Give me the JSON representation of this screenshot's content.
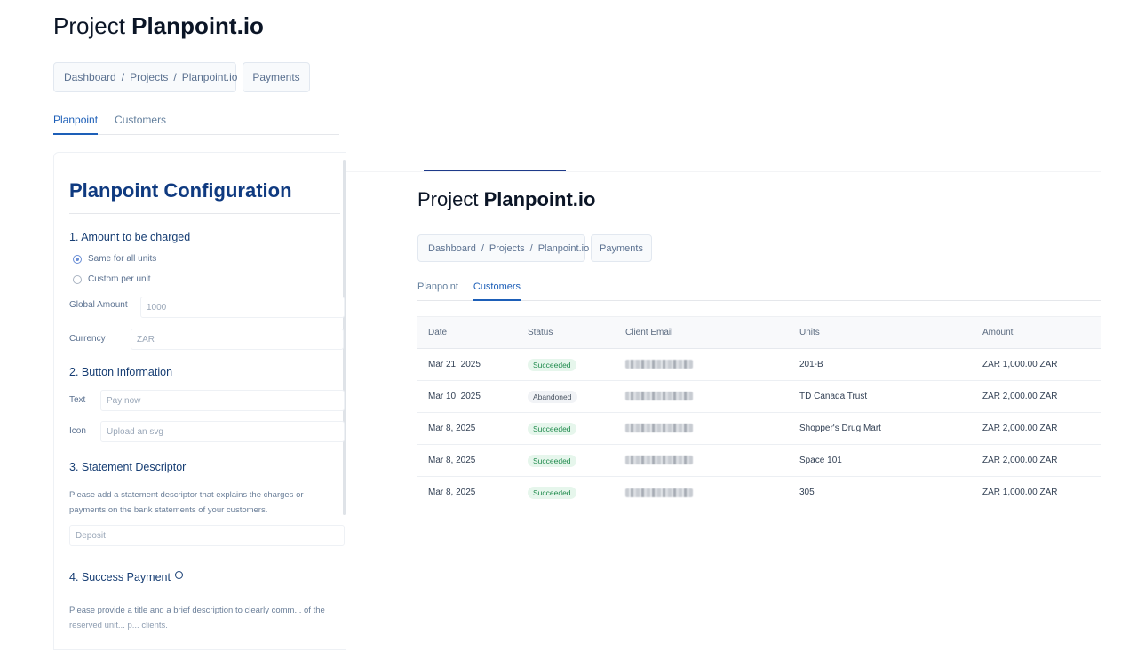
{
  "colors": {
    "accent": "#1d5fb8",
    "heading_dark": "#0f3a80",
    "badge_success_bg": "#e6f6ec",
    "badge_success_text": "#1f8a4c",
    "badge_abandoned_bg": "#f1f3f6"
  },
  "left": {
    "title_prefix": "Project ",
    "title_name": "Planpoint.io",
    "breadcrumb": [
      "Dashboard",
      "Projects",
      "Planpoint.io"
    ],
    "payments_label": "Payments",
    "tabs": [
      {
        "label": "Planpoint",
        "active": true
      },
      {
        "label": "Customers",
        "active": false
      }
    ],
    "config": {
      "title": "Planpoint Configuration",
      "section1": "1. Amount to be charged",
      "radio_same": "Same for all units",
      "radio_custom": "Custom per unit",
      "global_amount_label": "Global Amount",
      "global_amount_placeholder": "1000",
      "currency_label": "Currency",
      "currency_placeholder": "ZAR",
      "section2": "2. Button Information",
      "text_label": "Text",
      "text_placeholder": "Pay now",
      "icon_label": "Icon",
      "icon_placeholder": "Upload an svg",
      "section3": "3. Statement Descriptor",
      "section3_help": "Please add a statement descriptor that explains the charges or payments on the bank statements of your customers.",
      "descriptor_placeholder": "Deposit",
      "section4": "4. Success Payment",
      "section4_help": "Please provide a title and a brief description to clearly comm... of the reserved unit... p... clients."
    }
  },
  "right": {
    "title_prefix": "Project ",
    "title_name": "Planpoint.io",
    "breadcrumb": [
      "Dashboard",
      "Projects",
      "Planpoint.io"
    ],
    "payments_label": "Payments",
    "tabs": [
      {
        "label": "Planpoint",
        "active": false
      },
      {
        "label": "Customers",
        "active": true
      }
    ],
    "table": {
      "headers": [
        "Date",
        "Status",
        "Client Email",
        "Units",
        "Amount"
      ],
      "rows": [
        {
          "date": "Mar 21, 2025",
          "status": "Succeeded",
          "units": "201-B",
          "amount": "ZAR 1,000.00 ZAR"
        },
        {
          "date": "Mar 10, 2025",
          "status": "Abandoned",
          "units": "TD Canada Trust",
          "amount": "ZAR 2,000.00 ZAR"
        },
        {
          "date": "Mar 8, 2025",
          "status": "Succeeded",
          "units": "Shopper's Drug Mart",
          "amount": "ZAR 2,000.00 ZAR"
        },
        {
          "date": "Mar 8, 2025",
          "status": "Succeeded",
          "units": "Space 101",
          "amount": "ZAR 2,000.00 ZAR"
        },
        {
          "date": "Mar 8, 2025",
          "status": "Succeeded",
          "units": "305",
          "amount": "ZAR 1,000.00 ZAR"
        }
      ]
    }
  }
}
